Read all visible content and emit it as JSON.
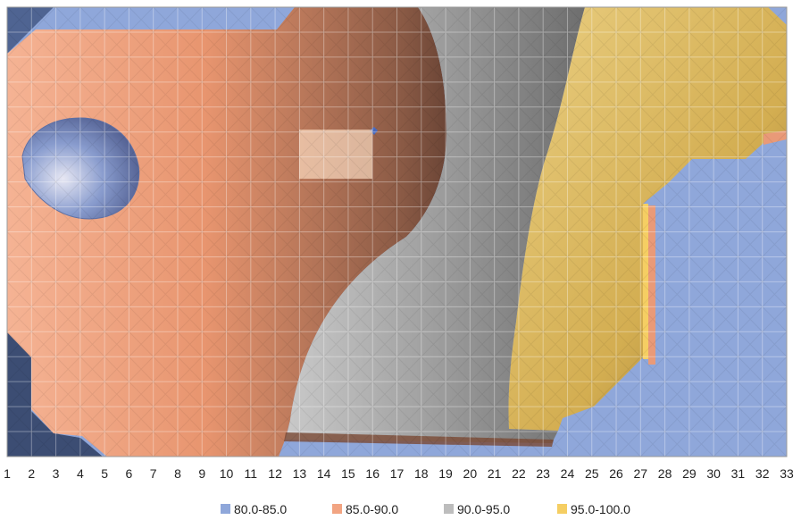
{
  "chart_data": {
    "type": "surface",
    "view": "top-down contour",
    "x_categories": [
      "1",
      "2",
      "3",
      "4",
      "5",
      "6",
      "7",
      "8",
      "9",
      "10",
      "11",
      "12",
      "13",
      "14",
      "15",
      "16",
      "17",
      "18",
      "19",
      "20",
      "21",
      "22",
      "23",
      "24",
      "25",
      "26",
      "27",
      "28",
      "29",
      "30",
      "31",
      "32",
      "33"
    ],
    "y_rows": 18,
    "grid": true,
    "bands": [
      {
        "label": "80.0-85.0",
        "color": "#8FA7DA"
      },
      {
        "label": "85.0-90.0",
        "color": "#F2A482"
      },
      {
        "label": "90.0-95.0",
        "color": "#BDBDBD"
      },
      {
        "label": "95.0-100.0",
        "color": "#F5CE63"
      }
    ],
    "legend_position": "bottom"
  }
}
